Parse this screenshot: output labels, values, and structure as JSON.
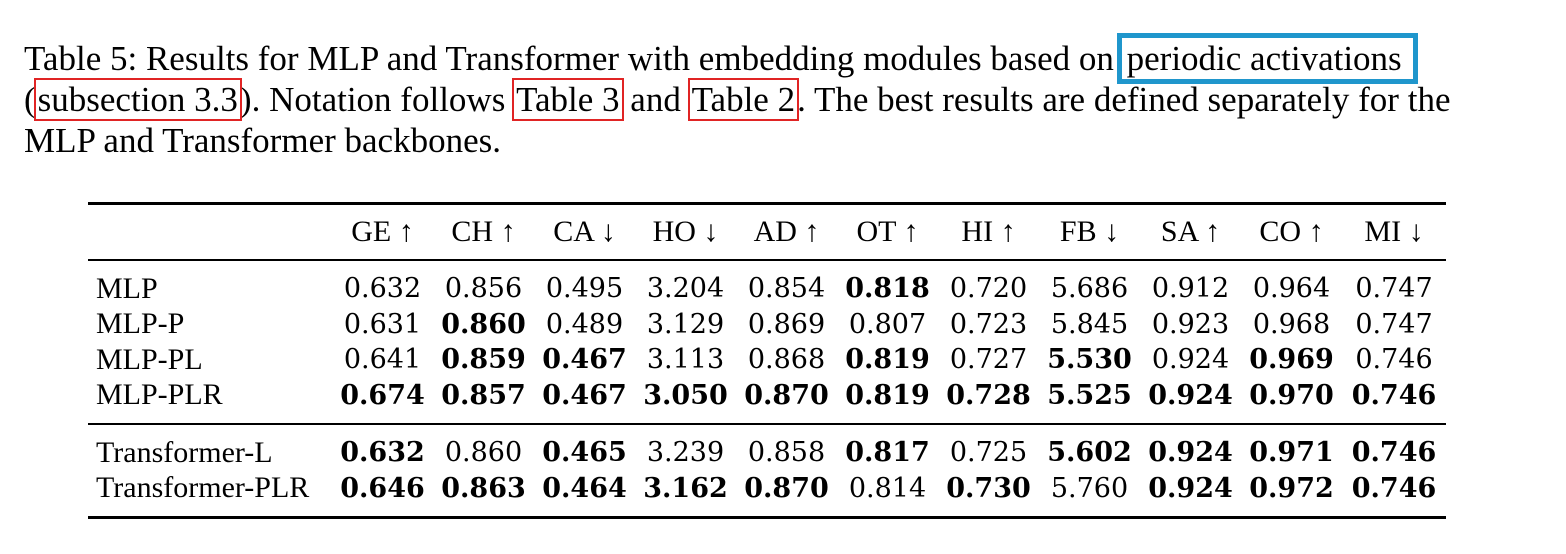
{
  "caption": {
    "part1": "Table 5: Results for MLP and Transformer with embedding modules based on ",
    "link_periodic": "periodic activations",
    "open_paren": "(",
    "link_subsection": "subsection 3.3",
    "part2": "). Notation follows ",
    "link_table3": "Table 3",
    "and": " and ",
    "link_table2": "Table 2",
    "part3": ". The best results are defined separately for the",
    "line3": "MLP and Transformer backbones."
  },
  "colors": {
    "link_box_red": "#e02424",
    "link_box_blue": "#1f96cc"
  },
  "table": {
    "headers": [
      "",
      "GE ↑",
      "CH ↑",
      "CA ↓",
      "HO ↓",
      "AD ↑",
      "OT ↑",
      "HI ↑",
      "FB ↓",
      "SA ↑",
      "CO ↑",
      "MI ↓"
    ],
    "group_mlp": [
      {
        "name": "MLP",
        "cells": [
          {
            "v": "0.632",
            "b": false
          },
          {
            "v": "0.856",
            "b": false
          },
          {
            "v": "0.495",
            "b": false
          },
          {
            "v": "3.204",
            "b": false
          },
          {
            "v": "0.854",
            "b": false
          },
          {
            "v": "0.818",
            "b": true
          },
          {
            "v": "0.720",
            "b": false
          },
          {
            "v": "5.686",
            "b": false
          },
          {
            "v": "0.912",
            "b": false
          },
          {
            "v": "0.964",
            "b": false
          },
          {
            "v": "0.747",
            "b": false
          }
        ]
      },
      {
        "name": "MLP-P",
        "cells": [
          {
            "v": "0.631",
            "b": false
          },
          {
            "v": "0.860",
            "b": true
          },
          {
            "v": "0.489",
            "b": false
          },
          {
            "v": "3.129",
            "b": false
          },
          {
            "v": "0.869",
            "b": false
          },
          {
            "v": "0.807",
            "b": false
          },
          {
            "v": "0.723",
            "b": false
          },
          {
            "v": "5.845",
            "b": false
          },
          {
            "v": "0.923",
            "b": false
          },
          {
            "v": "0.968",
            "b": false
          },
          {
            "v": "0.747",
            "b": false
          }
        ]
      },
      {
        "name": "MLP-PL",
        "cells": [
          {
            "v": "0.641",
            "b": false
          },
          {
            "v": "0.859",
            "b": true
          },
          {
            "v": "0.467",
            "b": true
          },
          {
            "v": "3.113",
            "b": false
          },
          {
            "v": "0.868",
            "b": false
          },
          {
            "v": "0.819",
            "b": true
          },
          {
            "v": "0.727",
            "b": false
          },
          {
            "v": "5.530",
            "b": true
          },
          {
            "v": "0.924",
            "b": false
          },
          {
            "v": "0.969",
            "b": true
          },
          {
            "v": "0.746",
            "b": false
          }
        ]
      },
      {
        "name": "MLP-PLR",
        "cells": [
          {
            "v": "0.674",
            "b": true
          },
          {
            "v": "0.857",
            "b": true
          },
          {
            "v": "0.467",
            "b": true
          },
          {
            "v": "3.050",
            "b": true
          },
          {
            "v": "0.870",
            "b": true
          },
          {
            "v": "0.819",
            "b": true
          },
          {
            "v": "0.728",
            "b": true
          },
          {
            "v": "5.525",
            "b": true
          },
          {
            "v": "0.924",
            "b": true
          },
          {
            "v": "0.970",
            "b": true
          },
          {
            "v": "0.746",
            "b": true
          }
        ]
      }
    ],
    "group_transformer": [
      {
        "name": "Transformer-L",
        "cells": [
          {
            "v": "0.632",
            "b": true
          },
          {
            "v": "0.860",
            "b": false
          },
          {
            "v": "0.465",
            "b": true
          },
          {
            "v": "3.239",
            "b": false
          },
          {
            "v": "0.858",
            "b": false
          },
          {
            "v": "0.817",
            "b": true
          },
          {
            "v": "0.725",
            "b": false
          },
          {
            "v": "5.602",
            "b": true
          },
          {
            "v": "0.924",
            "b": true
          },
          {
            "v": "0.971",
            "b": true
          },
          {
            "v": "0.746",
            "b": true
          }
        ]
      },
      {
        "name": "Transformer-PLR",
        "cells": [
          {
            "v": "0.646",
            "b": true
          },
          {
            "v": "0.863",
            "b": true
          },
          {
            "v": "0.464",
            "b": true
          },
          {
            "v": "3.162",
            "b": true
          },
          {
            "v": "0.870",
            "b": true
          },
          {
            "v": "0.814",
            "b": false
          },
          {
            "v": "0.730",
            "b": true
          },
          {
            "v": "5.760",
            "b": false
          },
          {
            "v": "0.924",
            "b": true
          },
          {
            "v": "0.972",
            "b": true
          },
          {
            "v": "0.746",
            "b": true
          }
        ]
      }
    ]
  }
}
